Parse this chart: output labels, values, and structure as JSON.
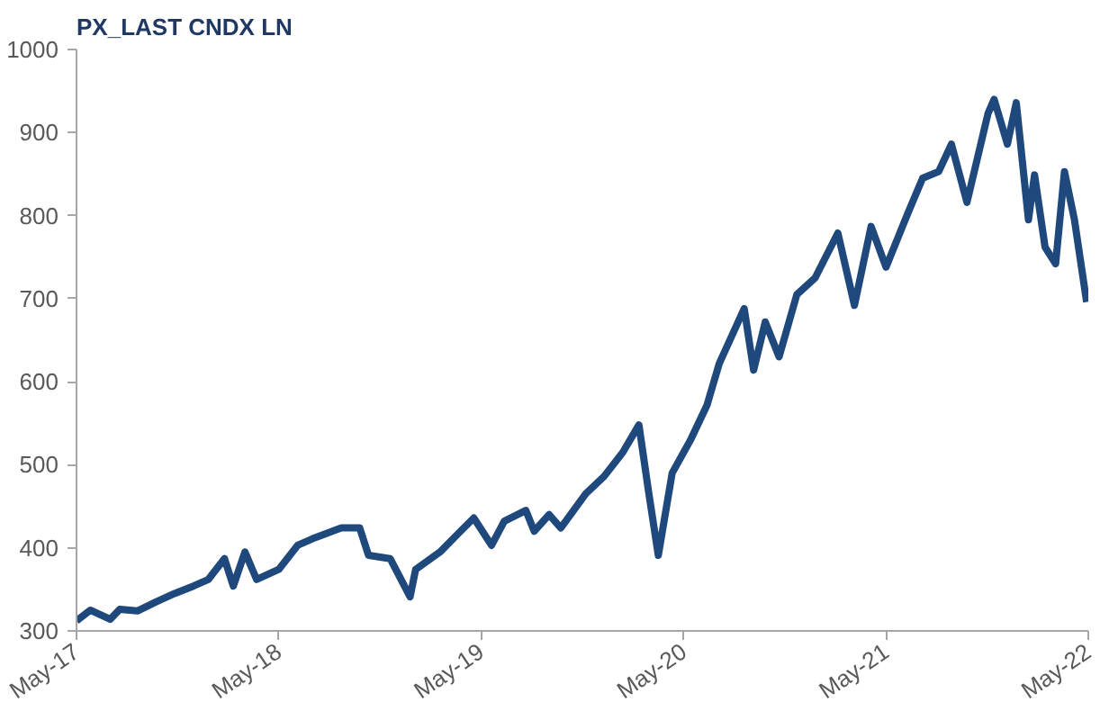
{
  "chart_data": {
    "type": "line",
    "title": "PX_LAST CNDX LN",
    "x": [
      "2017-05-01",
      "2017-05-26",
      "2017-07-01",
      "2017-07-18",
      "2017-08-19",
      "2017-09-22",
      "2017-10-25",
      "2017-11-28",
      "2017-12-25",
      "2018-01-23",
      "2018-02-08",
      "2018-03-01",
      "2018-03-22",
      "2018-05-01",
      "2018-06-04",
      "2018-07-01",
      "2018-08-22",
      "2018-09-24",
      "2018-10-10",
      "2018-11-18",
      "2018-12-24",
      "2019-01-03",
      "2019-02-16",
      "2019-03-19",
      "2019-04-18",
      "2019-05-20",
      "2019-06-12",
      "2019-07-21",
      "2019-08-05",
      "2019-09-01",
      "2019-09-22",
      "2019-11-06",
      "2019-12-09",
      "2020-01-12",
      "2020-02-10",
      "2020-02-28",
      "2020-03-16",
      "2020-04-10",
      "2020-05-14",
      "2020-06-12",
      "2020-07-04",
      "2020-08-18",
      "2020-09-04",
      "2020-09-25",
      "2020-10-20",
      "2020-11-21",
      "2020-12-24",
      "2021-02-03",
      "2021-03-05",
      "2021-04-04",
      "2021-05-01",
      "2021-06-10",
      "2021-07-06",
      "2021-08-04",
      "2021-08-27",
      "2021-09-24",
      "2021-11-01",
      "2021-11-12",
      "2021-12-06",
      "2021-12-22",
      "2022-01-13",
      "2022-01-24",
      "2022-02-12",
      "2022-03-03",
      "2022-03-19",
      "2022-04-06",
      "2022-04-28"
    ],
    "series": [
      {
        "color": "#1f497d",
        "values": [
          312,
          325,
          314,
          326,
          324,
          335,
          345,
          354,
          362,
          387,
          354,
          395,
          362,
          374,
          403,
          411,
          424,
          424,
          391,
          387,
          341,
          374,
          395,
          416,
          436,
          403,
          432,
          445,
          420,
          440,
          424,
          465,
          486,
          515,
          548,
          465,
          391,
          490,
          531,
          572,
          622,
          688,
          614,
          672,
          630,
          705,
          725,
          779,
          692,
          787,
          738,
          804,
          845,
          853,
          886,
          816,
          923,
          940,
          886,
          936,
          795,
          849,
          762,
          742,
          853,
          795,
          696
        ]
      }
    ],
    "xlim": [
      "2017-05-01",
      "2022-05-01"
    ],
    "xticks": [
      {
        "value": "2017-05-01",
        "label": "May-17"
      },
      {
        "value": "2018-05-01",
        "label": "May-18"
      },
      {
        "value": "2019-05-01",
        "label": "May-19"
      },
      {
        "value": "2020-05-01",
        "label": "May-20"
      },
      {
        "value": "2021-05-01",
        "label": "May-21"
      },
      {
        "value": "2022-05-01",
        "label": "May-22"
      }
    ],
    "ylim": [
      300,
      1000
    ],
    "yticks": [
      300,
      400,
      500,
      600,
      700,
      800,
      900,
      1000
    ],
    "line_style": "solid"
  }
}
